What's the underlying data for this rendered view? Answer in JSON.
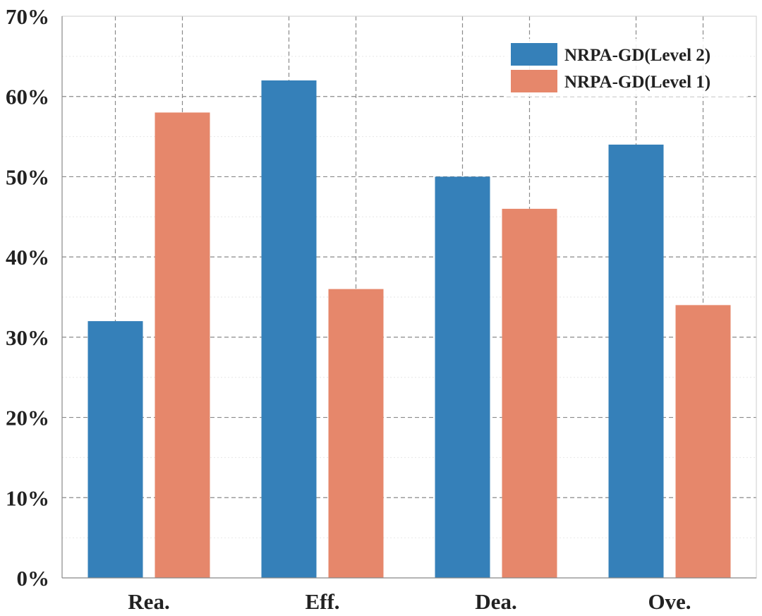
{
  "chart_data": {
    "type": "bar",
    "categories": [
      "Rea.",
      "Eff.",
      "Dea.",
      "Ove."
    ],
    "series": [
      {
        "name": "NRPA-GD(Level 2)",
        "values": [
          32,
          62,
          50,
          54
        ],
        "color": "#3580b9"
      },
      {
        "name": "NRPA-GD(Level 1)",
        "values": [
          58,
          36,
          46,
          34
        ],
        "color": "#e6876b"
      }
    ],
    "y_ticks": [
      "0%",
      "10%",
      "20%",
      "30%",
      "40%",
      "50%",
      "60%",
      "70%"
    ],
    "ylim": [
      0,
      70
    ],
    "y_unit": "%",
    "grid": true,
    "legend_position": "top-right",
    "title": "",
    "xlabel": "",
    "ylabel": ""
  }
}
